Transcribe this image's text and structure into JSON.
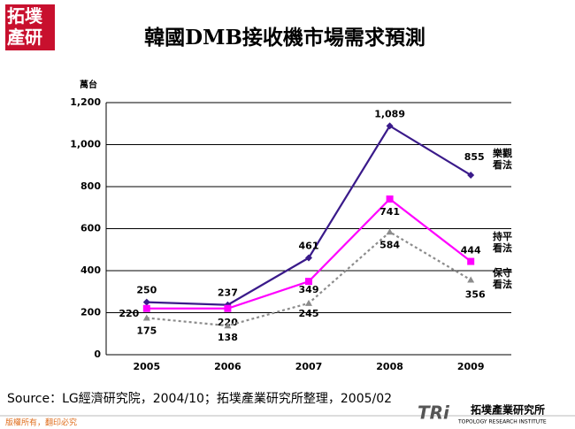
{
  "chart_data": {
    "type": "line",
    "title": "韓國DMB接收機市場需求預測",
    "y_label": "萬台",
    "categories": [
      "2005",
      "2006",
      "2007",
      "2008",
      "2009"
    ],
    "series": [
      {
        "name": "樂觀看法",
        "color": "#3a1a8a",
        "marker": "diamond",
        "dash": false,
        "values": [
          250,
          237,
          461,
          1089,
          855
        ],
        "value_labels": [
          "250",
          "237",
          "461",
          "1,089",
          "855"
        ]
      },
      {
        "name": "持平看法",
        "color": "#ff00ff",
        "marker": "square",
        "dash": false,
        "values": [
          220,
          220,
          349,
          741,
          444
        ]
      },
      {
        "name": "保守看法",
        "color": "#8c8c8c",
        "marker": "triangle",
        "dash": true,
        "values": [
          175,
          138,
          245,
          584,
          356
        ]
      }
    ],
    "ylim": [
      0,
      1200
    ],
    "yticks": [
      0,
      200,
      400,
      600,
      800,
      {
        "value": 1000,
        "label": "1,000"
      },
      {
        "value": 1200,
        "label": "1,200"
      }
    ],
    "grid": true
  },
  "slide": {
    "source": "Source：LG經濟研究院，2004/10；拓墣產業研究所整理，2005/02",
    "logo": "拓墣產研",
    "copyright": "版權所有，翻印必究",
    "brand": "TRi",
    "institute": "拓墣產業研究所",
    "institute_en": "TOPOLOGY RESEARCH INSTITUTE"
  }
}
